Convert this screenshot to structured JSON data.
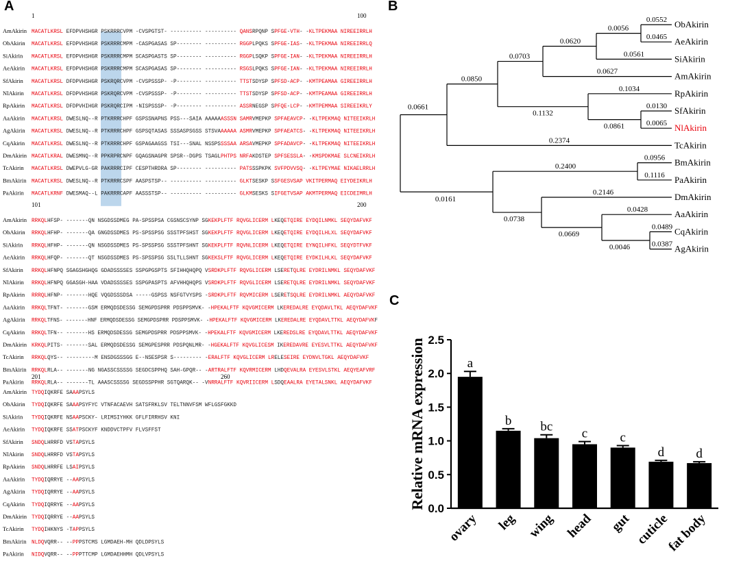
{
  "labels": {
    "a": "A",
    "b": "B",
    "c": "C"
  },
  "alignment": {
    "blocks": [
      {
        "start": "1",
        "end": "100",
        "rows": [
          {
            "name": "AmAkirin",
            "seq": "MACATLKRSL EFDPVHSHGR PSKRRRCVPM -CVSPGTST- ---------- ---------- QANSRPQNP SPFGE-VTH- -KLTPEKMAA NIREEIRRLH"
          },
          {
            "name": "ObAkirin",
            "seq": "MACATLKRSL EFDPVHSHGR PSKRRRCMPM -CASPGASAS SP-------- ---------- RGGPLPQKS SPFGE-IAS- -KLTPEKMAA NIREEIRRLQ"
          },
          {
            "name": "SiAkirin",
            "seq": "MACATLKRSL EFDPVHSHGR PSKRRRCMPM SCASPGASTS SP-------- ---------- RGGPLSQKP SPFGE-IAN- -KLTPEKMAA NIREEIRRLH"
          },
          {
            "name": "AeAkirin",
            "seq": "MACATLKRSL EFDPVHSHGR PSKRRRCMPM SCASPGASAS SP-------- ---------- RSGSLPQKS SPFGE-IAN- -KLTPEKMAA NIREEIRRLH"
          },
          {
            "name": "SfAkirin",
            "seq": "MACATLKRSL DFDPVHSHGR PSKRQRCVPM -CVSPSSSP- -P-------- ---------- TTSTSDYSP SPFSD-ACP- -KMTPEAMAA GIREEIRRLH"
          },
          {
            "name": "NlAkirin",
            "seq": "MACATLKRSL DFDPVHSHGR PSKRQRCVPM -CVSPSSSP- -P-------- ---------- TTSTSDYSP SPFSD-ACP- -KMTPEAMAA GIREEIRRLH"
          },
          {
            "name": "RpAkirin",
            "seq": "MACATLKRSL DFDPVHIHGR PSKRQRCIPM -NISPSSSP- -P-------- ---------- ASSRNEGSP SPFQE-LCP- -KMTPEMMAA SIREEIKRLY"
          },
          {
            "name": "AaAkirin",
            "seq": "MACATLKRSL DWESLNQ--R PTKRRRCHPF GSPSSNAPNS PSS---SAIA AAAAAASSSN SAMRVMEPKP SPFAEAVCP- -KLTPEKMAQ NITEEIKRLH"
          },
          {
            "name": "AgAkirin",
            "seq": "MACATLKRSL DWESLNQ--R PTKRRRCHPF GSPSQTASAS SSSASPSGSS STSVAAAAAA ASMRVMEPKP SPFAEATCS- -KLTPEKMAQ NITEEIKRLH"
          },
          {
            "name": "CqAkirin",
            "seq": "MACATLKRSL DWESLNQ--R PTKRRRCHPF GSPAGAAGSS TSI---SNAL NSSPSSSSAA ARSAVMEPKP SPFADAVCP- -KLTPEKMAQ NITEEIKRLH"
          },
          {
            "name": "DmAkirin",
            "seq": "MACATLKRAL DWESMNQ--R PPKRPRCNPF GQAGSNAGPR SPSR--DGPS TSAGLPHTPS NRFAKDSTEP SPFSESSLA- -KMSPDKMAE SLCNEIKRLH"
          },
          {
            "name": "TcAkirin",
            "seq": "MACATLKRSL DWEPVLG-GR PAKRRRCIPF CESPTHRDRA SP-------- ---------- PATSSSPKPK SVFPDVVSQ- -KLTPEYMAE NIKAELRRLH"
          },
          {
            "name": "BmAkirin",
            "seq": "MACATLKRSL DWESLNQ--R PTKRRRCSPF AASPSTSP-- ---------- ---------- GLKTSESKP SSFGESVSAP VKITPERMAQ EIYDEIKRLH"
          },
          {
            "name": "PaAkirin",
            "seq": "MACATLKRNF DWESMAQ--L PAKRRRCAPF AASSSTSP-- ---------- ---------- GLKMSESKS SIFGETVSAP AKMTPERMAQ EICDEIMRLH"
          }
        ]
      },
      {
        "start": "101",
        "end": "200",
        "rows": [
          {
            "name": "AmAkirin",
            "seq": "RRKQLHFSP- -------QN NSGDSSDMEG PA-SPSSPSA CGSNSCSYNP SGKEKPLFTF RQVGLICERM LKEQETQIRE EYDQILNMKL SEQYDAFVKF"
          },
          {
            "name": "ObAkirin",
            "seq": "RRKQLHFHP- -------QA GNGDSSDMES PS-SPSSPSG SSSTPFSHST SGKEKPLFTF RQVGLICERM LKEQETQIRE EYDQILHLXL SEQYDAFVKF"
          },
          {
            "name": "SiAkirin",
            "seq": "RRKQLHFHP- -------QN NSGDSSDMES PS-SPSSPSG SSSTPFSHNT SGKEKPLFTF RQVNLICERM LKEQETQIRE EYNQILHFKL SEQYDTFVKF"
          },
          {
            "name": "AeAkirin",
            "seq": "RRKQLHFQP- -------QT NSGDSSDMES PS-SPSSPSG SSLTLLSHNT SGKEKSLFTF RQVGLICERM LKEQETQIRE EYDKILHLKL SEQYDAFVKF"
          },
          {
            "name": "SfAkirin",
            "seq": "RRKQLHFNPQ SGAGSHGHQG GDADSSSSES SSPGPGSPTS SFIHHQHQPQ VSRDKPLFTF RQVGLICERM LSEREТQLRE EYDRILNMKL SEQYDAFVKF"
          },
          {
            "name": "NlAkirin",
            "seq": "RRKQLHFNPQ GGASGH-HAA VDADSSSSES SSPGPASPTS AFVHHQHQPS VSRDKPLFTF RQVGLICERM LSERETQLRE EYDRILNMKL SEQYDAFVKF"
          },
          {
            "name": "RpAkirin",
            "seq": "RRRQLHFNP- -------HQE VQGDSSSDSA -----GSPSS NSFGTVYSPS -SRDKPLFTF RQVMICERM LSEREТSQLRE EYDRILNMKL AEQYDAFVKF"
          },
          {
            "name": "AaAkirin",
            "seq": "RRKQLTFNT- -------GSM ERMQDSDESSG SEMGPDSPRR PDSPPSMVK- -HPEKALFTF KQVGMICERM LKEREDALRE EYQDAVLTKL AEQYDAFVKF"
          },
          {
            "name": "AgAkirin",
            "seq": "RRKQLTFNS- -------HNF ERMQDSDESSG SEMGPDSPRR PDSPPSMVK- -HPEKALFTF KQVGMICERM LKEREDALRE EYQDAVLTTKL AEQYDAFVKF"
          },
          {
            "name": "CqAkirin",
            "seq": "RRKQLTFN-- -------HS ERMQDSDESSG SEMGPDSPRR PDSPPSMVK- -HPEKALFTF KQVGMICERM LKEREDSLRE EYQDAVLTTKL AEQYDAFVKF"
          },
          {
            "name": "DmAkirin",
            "seq": "KRKQLPITS- -------SAL ERMQDSDESSG SEMGPESPRR PDSPQNLMR- -HGEKALFTF KQVGLICESM IKEREDAVRE EYESVLTTKL AEQYDAFVKF"
          },
          {
            "name": "TcAkirin",
            "seq": "RRKQLQYS-- ---------M ENSDGSSSGG E--NSESPSR S--------- -ERALFTF KQVGLICERM LRELESEIRE EYDNVLTGKL AEQYDAFVKF"
          },
          {
            "name": "BmAkirin",
            "seq": "RRKQLRLA-- -------NG NGASSCSSSSG SEGDCSPPHQ SAH-GPQR-- -ARTRALFTF KQVRMICERM LHDQEVALRA EYESVLSTKL AEQYEAFVRF"
          },
          {
            "name": "PaAkirin",
            "seq": "RRKQLRLA-- -------TL AAASCSSSSG SEGDSSPPHR SGTQARQK-- -VNRRALFTF KQVRIICERM LSDQEAALRA EYETALSNKL AEQYDAFVKF"
          }
        ]
      },
      {
        "start": "201",
        "end": "260",
        "rows": [
          {
            "name": "AmAkirin",
            "seq": "TYDQIQKRFE SAAAPSYLS"
          },
          {
            "name": "ObAkirin",
            "seq": "TYDQIQKRFE SAAAPSYFYC VTNFACAEVH SATSFRKLSV TELTNNVFSM WFLGSFGKKD"
          },
          {
            "name": "SiAkirin",
            "seq": "TYDQIQKRFE NSAAPSCKY- LRIMSIYHKK GFLFIRRHSV KNI"
          },
          {
            "name": "AeAkirin",
            "seq": "TYDQIQKRFE SSATPSCKYF KNDDVCTPFV FLVSFFST"
          },
          {
            "name": "SfAkirin",
            "seq": "SNDQLHRRFD VSTAPSYLS"
          },
          {
            "name": "NlAkirin",
            "seq": "SNDQLHRRFD VSTAPSYLS"
          },
          {
            "name": "RpAkirin",
            "seq": "SNDQLHRRFE LSAIPSYLS"
          },
          {
            "name": "AaAkirin",
            "seq": "TYDQIQRRYE --AAPSYLS"
          },
          {
            "name": "AgAkirin",
            "seq": "TYDQIQRRYE --AAPSYLS"
          },
          {
            "name": "CqAkirin",
            "seq": "TYDQIQRRYE --AAPSYLS"
          },
          {
            "name": "DmAkirin",
            "seq": "TYDQIQRRYE --AAPSYLS"
          },
          {
            "name": "TcAkirin",
            "seq": "TYDQIHKNYS -TAPPSYLS"
          },
          {
            "name": "BmAkirin",
            "seq": "NLDQVQRR-- --PPPSTCMS LGMDAEH-MH QDLDPSYLS"
          },
          {
            "name": "PaAkirin",
            "seq": "NIDQVQRR-- --PPPTTCMP LGMDAEHHMH QDLVPSYLS"
          }
        ]
      }
    ]
  },
  "tree": {
    "leaves": [
      {
        "name": "ObAkirin"
      },
      {
        "name": "AeAkirin"
      },
      {
        "name": "SiAkirin"
      },
      {
        "name": "AmAkirin"
      },
      {
        "name": "RpAkirin"
      },
      {
        "name": "SfAkirin"
      },
      {
        "name": "NlAkirin",
        "highlight": true
      },
      {
        "name": "TcAkirin"
      },
      {
        "name": "BmAkirin"
      },
      {
        "name": "PaAkirin"
      },
      {
        "name": "DmAkirin"
      },
      {
        "name": "AaAkirin"
      },
      {
        "name": "CqAkirin"
      },
      {
        "name": "AgAkirin"
      }
    ],
    "branch_lengths": [
      "0.0552",
      "0.0465",
      "0.0056",
      "0.0620",
      "0.0561",
      "0.0703",
      "0.0627",
      "0.0850",
      "0.1034",
      "0.0130",
      "0.0065",
      "0.0861",
      "0.1132",
      "0.0661",
      "0.2374",
      "0.0956",
      "0.1116",
      "0.2400",
      "0.2146",
      "0.0428",
      "0.0489",
      "0.0387",
      "0.0046",
      "0.0669",
      "0.0738",
      "0.0161"
    ],
    "highlight_color": "#e8000b"
  },
  "chart_data": {
    "type": "bar",
    "categories": [
      "ovary",
      "leg",
      "wing",
      "head",
      "gut",
      "cuticle",
      "fat body"
    ],
    "values": [
      1.95,
      1.15,
      1.04,
      0.95,
      0.9,
      0.69,
      0.67
    ],
    "errors": [
      0.08,
      0.03,
      0.05,
      0.04,
      0.03,
      0.02,
      0.02
    ],
    "letters": [
      "a",
      "b",
      "bc",
      "c",
      "c",
      "d",
      "d"
    ],
    "ylabel": "Relative mRNA expression",
    "yticks": [
      "0.0",
      "0.5",
      "1.0",
      "1.5",
      "2.0",
      "2.5"
    ],
    "ylim": [
      0,
      2.5
    ],
    "bar_color": "#000000"
  }
}
